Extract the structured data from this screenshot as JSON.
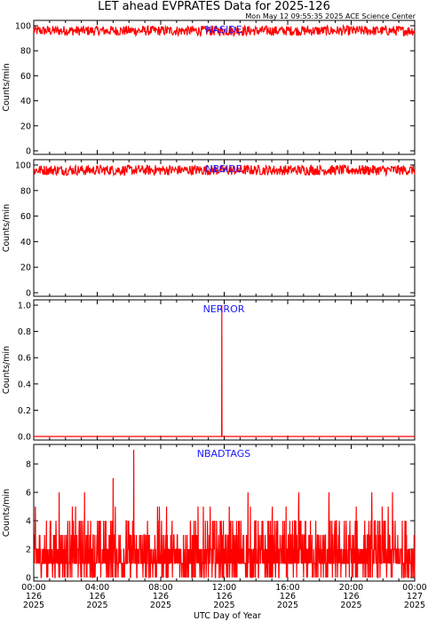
{
  "title": "LET ahead EVPRATES Data for 2025-126",
  "subtitle": "Mon May 12 09:55:35 2025 ACE Science Center",
  "xlabel": "UTC Day of Year",
  "colors": {
    "data": "#ff0000",
    "panel_label": "#1a1aff",
    "axis": "#000000"
  },
  "chart_data": [
    {
      "type": "line",
      "name": "NASIDE",
      "ylabel": "Counts/min",
      "ylim": [
        0,
        100
      ],
      "yticks": [
        "0",
        "20",
        "40",
        "60",
        "80",
        "100"
      ],
      "pattern": "dense noisy band between about 92 and 100 counts/min across the full day",
      "band": [
        92,
        100
      ]
    },
    {
      "type": "line",
      "name": "NBSIDE",
      "ylabel": "Counts/min",
      "ylim": [
        0,
        100
      ],
      "yticks": [
        "0",
        "20",
        "40",
        "60",
        "80",
        "100"
      ],
      "pattern": "dense noisy band between about 92 and 100 counts/min across the full day",
      "band": [
        92,
        100
      ]
    },
    {
      "type": "line",
      "name": "NERROR",
      "ylabel": "Counts/min",
      "ylim": [
        0,
        1
      ],
      "yticks": [
        "0.0",
        "0.2",
        "0.4",
        "0.6",
        "0.8",
        "1.0"
      ],
      "baseline": 0,
      "spikes": [
        {
          "hour": 11.85,
          "value": 1
        }
      ]
    },
    {
      "type": "line",
      "name": "NBADTAGS",
      "ylabel": "Counts/min",
      "ylim": [
        0,
        9
      ],
      "yticks": [
        "0",
        "2",
        "4",
        "6",
        "8"
      ],
      "pattern": "integer counts mostly 0-4, occasional peaks to 5-6",
      "peaks": [
        {
          "hour": 6.3,
          "value": 9
        },
        {
          "hour": 5.0,
          "value": 7
        },
        {
          "hour": 1.6,
          "value": 6
        },
        {
          "hour": 3.2,
          "value": 6
        },
        {
          "hour": 13.5,
          "value": 6
        },
        {
          "hour": 16.7,
          "value": 6
        },
        {
          "hour": 18.6,
          "value": 6
        },
        {
          "hour": 21.3,
          "value": 6
        },
        {
          "hour": 22.6,
          "value": 6
        }
      ]
    }
  ],
  "xaxis": {
    "range_hours": [
      0,
      24
    ],
    "major_ticks": [
      {
        "hour": 0,
        "time": "00:00",
        "doy": "126",
        "year": "2025"
      },
      {
        "hour": 4,
        "time": "04:00",
        "doy": "126",
        "year": "2025"
      },
      {
        "hour": 8,
        "time": "08:00",
        "doy": "126",
        "year": "2025"
      },
      {
        "hour": 12,
        "time": "12:00",
        "doy": "126",
        "year": "2025"
      },
      {
        "hour": 16,
        "time": "16:00",
        "doy": "126",
        "year": "2025"
      },
      {
        "hour": 20,
        "time": "20:00",
        "doy": "126",
        "year": "2025"
      },
      {
        "hour": 24,
        "time": "00:00",
        "doy": "127",
        "year": "2025"
      }
    ]
  }
}
